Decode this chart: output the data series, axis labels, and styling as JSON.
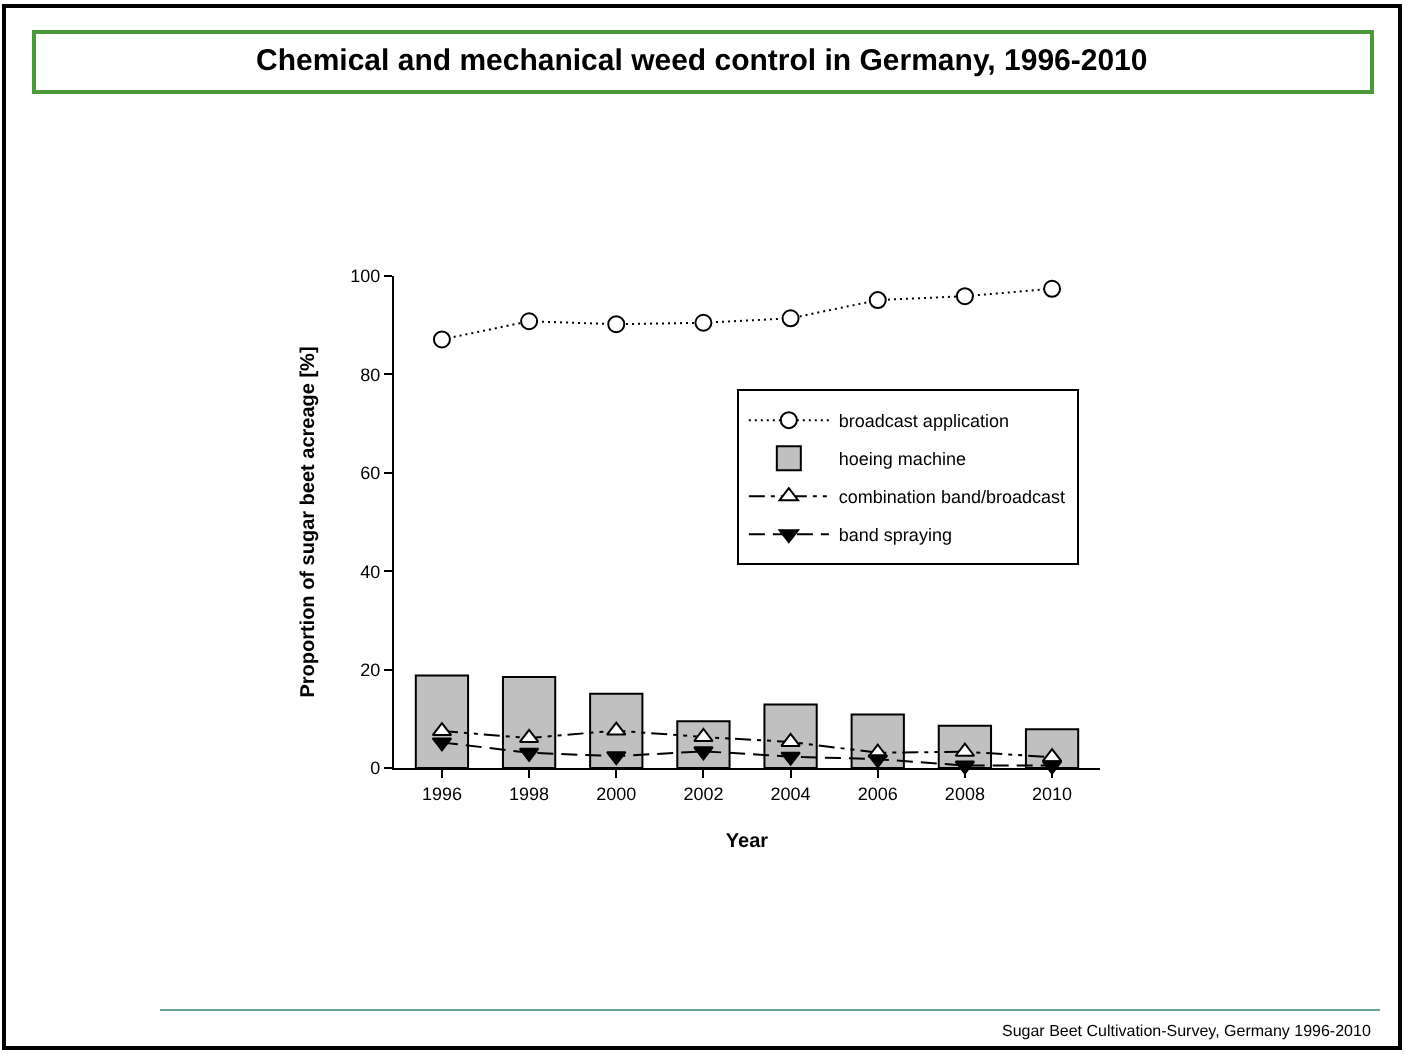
{
  "chart_data": {
    "type": "line",
    "title": "Chemical and mechanical weed control in Germany, 1996-2010",
    "xlabel": "Year",
    "ylabel": "Proportion of sugar beet acreage [%]",
    "categories": [
      "1996",
      "1998",
      "2000",
      "2002",
      "2004",
      "2006",
      "2008",
      "2010"
    ],
    "series": [
      {
        "name": "broadcast application",
        "color": "#000000",
        "marker": "circle",
        "line_style": "dotted",
        "values": [
          87.1,
          90.8,
          90.2,
          90.5,
          91.4,
          95.1,
          95.9,
          97.4
        ]
      },
      {
        "name": "hoeing machine",
        "type": "bar",
        "color": "#c0c0c0",
        "values": [
          18.8,
          18.5,
          15.1,
          9.5,
          12.9,
          10.9,
          8.6,
          7.9
        ]
      },
      {
        "name": "combination band/broadcast",
        "color": "#000000",
        "marker": "triangle",
        "line_style": "dashdotdot",
        "values": [
          7.5,
          6.1,
          7.6,
          6.3,
          5.3,
          3.1,
          3.3,
          2.2
        ]
      },
      {
        "name": "band spraying",
        "color": "#000000",
        "marker": "triangle-down",
        "line_style": "dashed",
        "values": [
          5.2,
          3.1,
          2.4,
          3.4,
          2.3,
          1.8,
          0.5,
          0.5
        ]
      }
    ],
    "ylim": [
      0,
      100
    ],
    "yticks": [
      0,
      20,
      40,
      60,
      80,
      100
    ],
    "legend": "top right",
    "annotations": [
      "Sugar Beet Cultivation-Survey, Germany 1996-2010"
    ]
  }
}
